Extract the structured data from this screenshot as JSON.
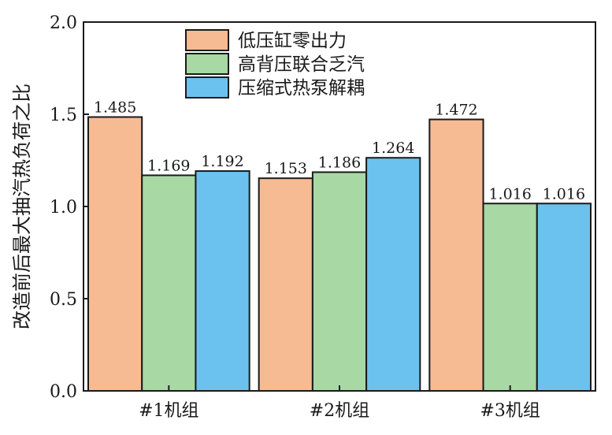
{
  "chart_data": {
    "type": "bar",
    "categories": [
      "#1机组",
      "#2机组",
      "#3机组"
    ],
    "series": [
      {
        "name": "低压缸零出力",
        "values": [
          1.485,
          1.153,
          1.472
        ],
        "color": "#f7bb93"
      },
      {
        "name": "高背压联合乏汽",
        "values": [
          1.169,
          1.186,
          1.016
        ],
        "color": "#a8d8a4"
      },
      {
        "name": "压缩式热泵解耦",
        "values": [
          1.192,
          1.264,
          1.016
        ],
        "color": "#6cc2ee"
      }
    ],
    "data_labels": [
      [
        "1.485",
        "1.153",
        "1.472"
      ],
      [
        "1.169",
        "1.186",
        "1.016"
      ],
      [
        "1.192",
        "1.264",
        "1.016"
      ]
    ],
    "ylabel": "改造前后最大抽汽热负荷之比",
    "xlabel": "",
    "ylim": [
      0,
      2.0
    ],
    "yticks": [
      "0.0",
      "0.5",
      "1.0",
      "1.5",
      "2.0"
    ],
    "grid": false,
    "legend_position": "top-center"
  }
}
